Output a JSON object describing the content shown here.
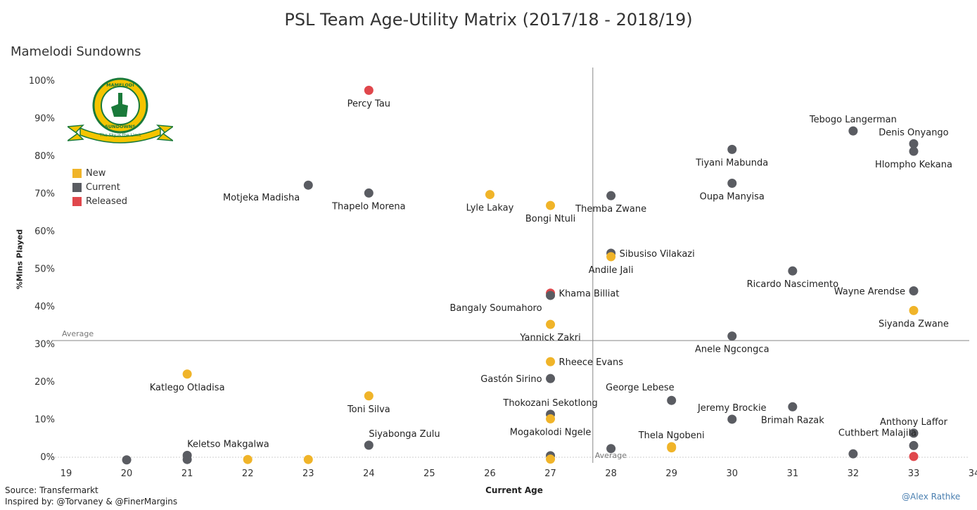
{
  "page": {
    "title": "PSL Team Age-Utility Matrix (2017/18 - 2018/19)",
    "subtitle": "Mamelodi Sundowns",
    "source_line1": "Source: Transfermarkt",
    "source_line2": "Inspired by: @Torvaney & @FinerMargins",
    "credit": "@Alex Rathke"
  },
  "logo": {
    "top_text": "MAMELODI",
    "bottom_text": "SUNDOWNS",
    "ribbon_text": "The Sky is the Limit"
  },
  "colors": {
    "New": "#f0b429",
    "Current": "#5a5c62",
    "Released": "#e0474c",
    "axis": "#888888"
  },
  "legend": [
    {
      "label": "New",
      "color": "#f0b429"
    },
    {
      "label": "Current",
      "color": "#5a5c62"
    },
    {
      "label": "Released",
      "color": "#e0474c"
    }
  ],
  "chart_data": {
    "type": "scatter",
    "title": "PSL Team Age-Utility Matrix (2017/18 - 2018/19)",
    "xlabel": "Current Age",
    "ylabel": "%Mins Played",
    "xlim": [
      19,
      34
    ],
    "ylim": [
      0,
      100
    ],
    "x_ticks": [
      19,
      20,
      21,
      22,
      23,
      24,
      25,
      26,
      27,
      28,
      29,
      30,
      31,
      32,
      33,
      34
    ],
    "y_ticks": [
      0,
      10,
      20,
      30,
      40,
      50,
      60,
      70,
      80,
      90,
      100
    ],
    "reference_lines": [
      {
        "axis": "y",
        "value": 31,
        "label": "Average"
      },
      {
        "axis": "x",
        "value": 27.7,
        "label": "Average"
      }
    ],
    "points": [
      {
        "name": "Percy Tau",
        "age": 24,
        "pct": 97.5,
        "status": "Released",
        "label_pos": "below"
      },
      {
        "name": "Tebogo Langerman",
        "age": 32,
        "pct": 86.7,
        "status": "Current",
        "label_pos": "above"
      },
      {
        "name": "Denis Onyango",
        "age": 33,
        "pct": 83.3,
        "status": "Current",
        "label_pos": "above"
      },
      {
        "name": "Hlompho Kekana",
        "age": 33,
        "pct": 81.3,
        "status": "Current",
        "label_pos": "below"
      },
      {
        "name": "Tiyani Mabunda",
        "age": 30,
        "pct": 81.8,
        "status": "Current",
        "label_pos": "below"
      },
      {
        "name": "Oupa Manyisa",
        "age": 30,
        "pct": 72.8,
        "status": "Current",
        "label_pos": "below"
      },
      {
        "name": "Motjeka Madisha",
        "age": 23,
        "pct": 72.3,
        "status": "Current",
        "label_pos": "below-left"
      },
      {
        "name": "Thapelo Morena",
        "age": 24,
        "pct": 70.2,
        "status": "Current",
        "label_pos": "below"
      },
      {
        "name": "Lyle Lakay",
        "age": 26,
        "pct": 69.8,
        "status": "New",
        "label_pos": "below"
      },
      {
        "name": "Themba Zwane",
        "age": 28,
        "pct": 69.5,
        "status": "Current",
        "label_pos": "below"
      },
      {
        "name": "Bongi Ntuli",
        "age": 27,
        "pct": 66.9,
        "status": "New",
        "label_pos": "below"
      },
      {
        "name": "Sibusiso Vilakazi",
        "age": 28,
        "pct": 54.2,
        "status": "Current",
        "label_pos": "right"
      },
      {
        "name": "Andile Jali",
        "age": 28,
        "pct": 53.3,
        "status": "New",
        "label_pos": "below"
      },
      {
        "name": "Ricardo Nascimento",
        "age": 31,
        "pct": 49.5,
        "status": "Current",
        "label_pos": "below"
      },
      {
        "name": "Wayne Arendse",
        "age": 33,
        "pct": 44.2,
        "status": "Current",
        "label_pos": "left"
      },
      {
        "name": "Khama Billiat",
        "age": 27,
        "pct": 43.6,
        "status": "Released",
        "label_pos": "right"
      },
      {
        "name": "Bangaly Soumahoro",
        "age": 27,
        "pct": 43.0,
        "status": "Current",
        "label_pos": "below-left"
      },
      {
        "name": "Siyanda Zwane",
        "age": 33,
        "pct": 39.0,
        "status": "New",
        "label_pos": "below"
      },
      {
        "name": "Yannick Zakri",
        "age": 27,
        "pct": 35.3,
        "status": "New",
        "label_pos": "below"
      },
      {
        "name": "Anele Ngcongca",
        "age": 30,
        "pct": 32.2,
        "status": "Current",
        "label_pos": "below"
      },
      {
        "name": "Rheece Evans",
        "age": 27,
        "pct": 25.4,
        "status": "New",
        "label_pos": "right"
      },
      {
        "name": "Katlego Otladisa",
        "age": 21,
        "pct": 22.1,
        "status": "New",
        "label_pos": "below"
      },
      {
        "name": "Gastón Sirino",
        "age": 27,
        "pct": 20.9,
        "status": "Current",
        "label_pos": "left"
      },
      {
        "name": "Toni Silva",
        "age": 24,
        "pct": 16.3,
        "status": "New",
        "label_pos": "below"
      },
      {
        "name": "George Lebese",
        "age": 29,
        "pct": 15.1,
        "status": "Current",
        "label_pos": "above-left"
      },
      {
        "name": "Brimah Razak",
        "age": 31,
        "pct": 13.4,
        "status": "Current",
        "label_pos": "below"
      },
      {
        "name": "Thokozani Sekotlong",
        "age": 27,
        "pct": 11.4,
        "status": "Current",
        "label_pos": "above"
      },
      {
        "name": "Mogakolodi Ngele",
        "age": 27,
        "pct": 10.2,
        "status": "New",
        "label_pos": "below"
      },
      {
        "name": "Jeremy Brockie",
        "age": 30,
        "pct": 10.1,
        "status": "Current",
        "label_pos": "above"
      },
      {
        "name": "Anthony Laffor",
        "age": 33,
        "pct": 6.4,
        "status": "Current",
        "label_pos": "above"
      },
      {
        "name": "Siyabonga Zulu",
        "age": 24,
        "pct": 3.2,
        "status": "Current",
        "label_pos": "above-right"
      },
      {
        "name": "Cuthbert Malajila",
        "age": 33,
        "pct": 3.1,
        "status": "Current",
        "label_pos": "above-left"
      },
      {
        "name": "Thela Ngobeni",
        "age": 29,
        "pct": 2.8,
        "status": "New",
        "label_pos": "above"
      },
      {
        "name": "Keletso Makgalwa",
        "age": 21,
        "pct": 0.5,
        "status": "Current",
        "label_pos": "above-right"
      },
      {
        "name": "",
        "age": 28,
        "pct": 2.3,
        "status": "Current"
      },
      {
        "name": "",
        "age": 32,
        "pct": 0.9,
        "status": "Current"
      },
      {
        "name": "",
        "age": 33,
        "pct": 0.2,
        "status": "Released"
      },
      {
        "name": "",
        "age": 27,
        "pct": 0.4,
        "status": "Current"
      },
      {
        "name": "",
        "age": 27,
        "pct": -0.5,
        "status": "New"
      },
      {
        "name": "",
        "age": 20,
        "pct": -0.7,
        "status": "Current"
      },
      {
        "name": "",
        "age": 21,
        "pct": -0.6,
        "status": "Current"
      },
      {
        "name": "",
        "age": 22,
        "pct": -0.6,
        "status": "New"
      },
      {
        "name": "",
        "age": 23,
        "pct": -0.6,
        "status": "New"
      },
      {
        "name": "",
        "age": 29,
        "pct": 2.5,
        "status": "New"
      }
    ]
  }
}
